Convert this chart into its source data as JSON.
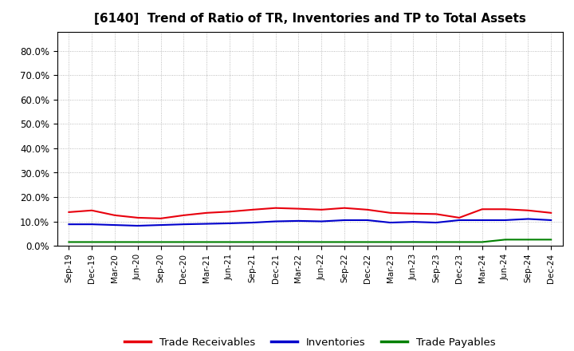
{
  "title": "[6140]  Trend of Ratio of TR, Inventories and TP to Total Assets",
  "x_labels": [
    "Sep-19",
    "Dec-19",
    "Mar-20",
    "Jun-20",
    "Sep-20",
    "Dec-20",
    "Mar-21",
    "Jun-21",
    "Sep-21",
    "Dec-21",
    "Mar-22",
    "Jun-22",
    "Sep-22",
    "Dec-22",
    "Mar-23",
    "Jun-23",
    "Sep-23",
    "Dec-23",
    "Mar-24",
    "Jun-24",
    "Sep-24",
    "Dec-24"
  ],
  "trade_receivables": [
    13.8,
    14.5,
    12.5,
    11.5,
    11.2,
    12.5,
    13.5,
    14.0,
    14.8,
    15.5,
    15.2,
    14.8,
    15.5,
    14.8,
    13.5,
    13.2,
    13.0,
    11.5,
    15.0,
    15.0,
    14.5,
    13.5
  ],
  "inventories": [
    8.8,
    8.8,
    8.5,
    8.2,
    8.5,
    8.8,
    9.0,
    9.2,
    9.5,
    10.0,
    10.2,
    10.0,
    10.5,
    10.5,
    9.5,
    9.8,
    9.5,
    10.5,
    10.5,
    10.5,
    11.0,
    10.5
  ],
  "trade_payables": [
    1.5,
    1.5,
    1.5,
    1.5,
    1.5,
    1.5,
    1.5,
    1.5,
    1.5,
    1.5,
    1.5,
    1.5,
    1.5,
    1.5,
    1.5,
    1.5,
    1.5,
    1.5,
    1.5,
    2.5,
    2.5,
    2.5
  ],
  "tr_color": "#e8000d",
  "inv_color": "#0000cc",
  "tp_color": "#008000",
  "ylim": [
    0,
    88
  ],
  "yticks": [
    0,
    10,
    20,
    30,
    40,
    50,
    60,
    70,
    80
  ],
  "ytick_labels": [
    "0.0%",
    "10.0%",
    "20.0%",
    "30.0%",
    "40.0%",
    "50.0%",
    "60.0%",
    "70.0%",
    "80.0%"
  ],
  "bg_color": "#ffffff",
  "plot_bg_color": "#ffffff",
  "grid_color": "#aaaaaa",
  "legend_labels": [
    "Trade Receivables",
    "Inventories",
    "Trade Payables"
  ]
}
